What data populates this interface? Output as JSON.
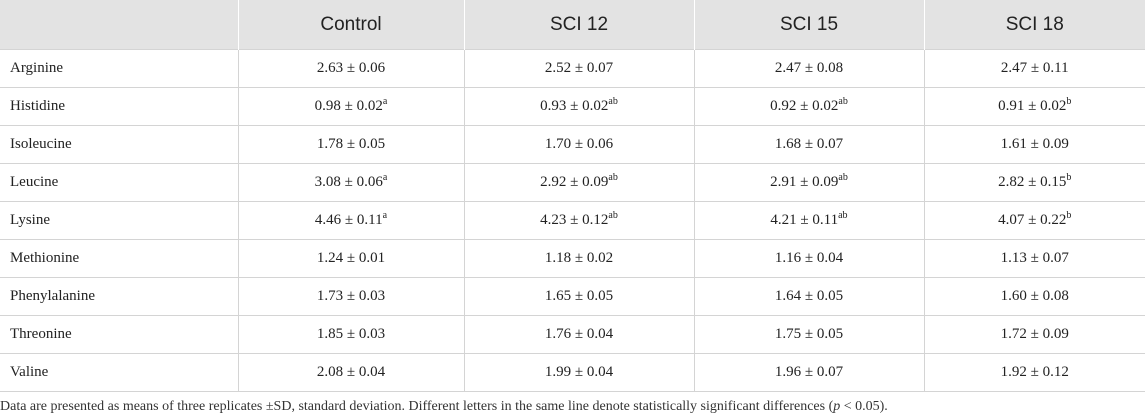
{
  "table": {
    "headers": [
      "",
      "Control",
      "SCI 12",
      "SCI 15",
      "SCI 18"
    ],
    "rows": [
      {
        "label": "Arginine",
        "cells": [
          {
            "value": "2.63 ± 0.06",
            "sup": ""
          },
          {
            "value": "2.52 ± 0.07",
            "sup": ""
          },
          {
            "value": "2.47 ± 0.08",
            "sup": ""
          },
          {
            "value": "2.47 ± 0.11",
            "sup": ""
          }
        ]
      },
      {
        "label": "Histidine",
        "cells": [
          {
            "value": "0.98 ± 0.02",
            "sup": "a"
          },
          {
            "value": "0.93 ± 0.02",
            "sup": "ab"
          },
          {
            "value": "0.92 ± 0.02",
            "sup": "ab"
          },
          {
            "value": "0.91 ± 0.02",
            "sup": "b"
          }
        ]
      },
      {
        "label": "Isoleucine",
        "cells": [
          {
            "value": "1.78 ± 0.05",
            "sup": ""
          },
          {
            "value": "1.70 ± 0.06",
            "sup": ""
          },
          {
            "value": "1.68 ± 0.07",
            "sup": ""
          },
          {
            "value": "1.61 ± 0.09",
            "sup": ""
          }
        ]
      },
      {
        "label": "Leucine",
        "cells": [
          {
            "value": "3.08 ± 0.06",
            "sup": "a"
          },
          {
            "value": "2.92 ± 0.09",
            "sup": "ab"
          },
          {
            "value": "2.91 ± 0.09",
            "sup": "ab"
          },
          {
            "value": "2.82 ± 0.15",
            "sup": "b"
          }
        ]
      },
      {
        "label": "Lysine",
        "cells": [
          {
            "value": "4.46 ± 0.11",
            "sup": "a"
          },
          {
            "value": "4.23 ± 0.12",
            "sup": "ab"
          },
          {
            "value": "4.21 ± 0.11",
            "sup": "ab"
          },
          {
            "value": "4.07 ± 0.22",
            "sup": "b"
          }
        ]
      },
      {
        "label": "Methionine",
        "cells": [
          {
            "value": "1.24 ± 0.01",
            "sup": ""
          },
          {
            "value": "1.18 ± 0.02",
            "sup": ""
          },
          {
            "value": "1.16 ± 0.04",
            "sup": ""
          },
          {
            "value": "1.13 ± 0.07",
            "sup": ""
          }
        ]
      },
      {
        "label": "Phenylalanine",
        "cells": [
          {
            "value": "1.73 ± 0.03",
            "sup": ""
          },
          {
            "value": "1.65 ± 0.05",
            "sup": ""
          },
          {
            "value": "1.64 ± 0.05",
            "sup": ""
          },
          {
            "value": "1.60 ± 0.08",
            "sup": ""
          }
        ]
      },
      {
        "label": "Threonine",
        "cells": [
          {
            "value": "1.85 ± 0.03",
            "sup": ""
          },
          {
            "value": "1.76 ± 0.04",
            "sup": ""
          },
          {
            "value": "1.75 ± 0.05",
            "sup": ""
          },
          {
            "value": "1.72 ± 0.09",
            "sup": ""
          }
        ]
      },
      {
        "label": "Valine",
        "cells": [
          {
            "value": "2.08 ± 0.04",
            "sup": ""
          },
          {
            "value": "1.99 ± 0.04",
            "sup": ""
          },
          {
            "value": "1.96 ± 0.07",
            "sup": ""
          },
          {
            "value": "1.92 ± 0.12",
            "sup": ""
          }
        ]
      }
    ]
  },
  "footnote": {
    "text_before": "Data are presented as means of three replicates ±SD, standard deviation. Different letters in the same line denote statistically significant differences (",
    "p_symbol": "p",
    "text_after": " < 0.05)."
  }
}
